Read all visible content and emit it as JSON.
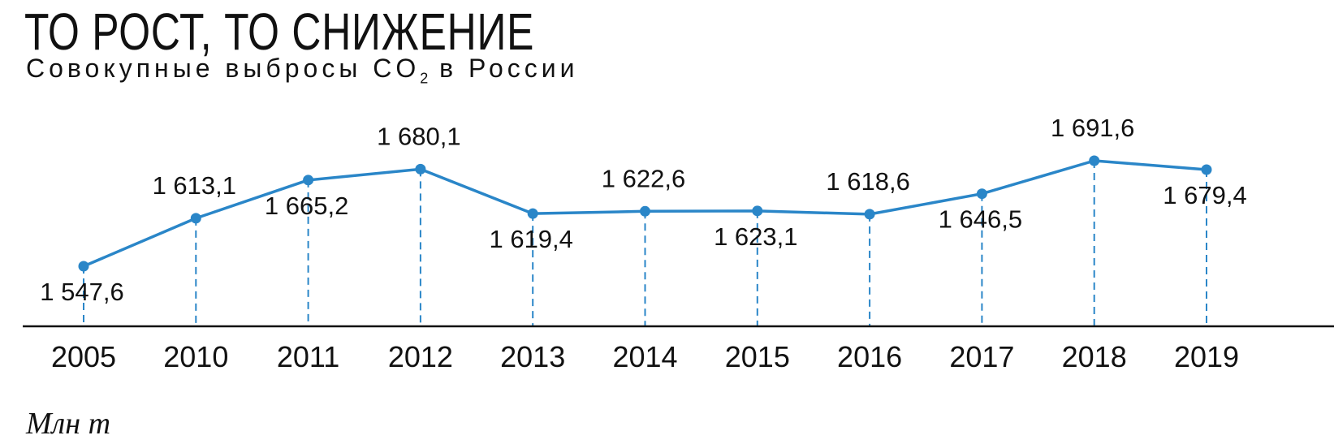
{
  "chart_data": {
    "type": "line",
    "title": "ТО РОСТ, ТО СНИЖЕНИЕ",
    "subtitle_main": "Совокупные выбросы CO",
    "subtitle_sub": "2",
    "subtitle_tail": " в России",
    "unit": "Млн т",
    "categories": [
      "2005",
      "2010",
      "2011",
      "2012",
      "2013",
      "2014",
      "2015",
      "2016",
      "2017",
      "2018",
      "2019"
    ],
    "values": [
      1547.6,
      1613.1,
      1665.2,
      1680.1,
      1619.4,
      1622.6,
      1623.1,
      1618.6,
      1646.5,
      1691.6,
      1679.4
    ],
    "data_labels": [
      "1 547,6",
      "1 613,1",
      "1 665,2",
      "1 680,1",
      "1 619,4",
      "1 622,6",
      "1 623,1",
      "1 618,6",
      "1 646,5",
      "1 691,6",
      "1 679,4"
    ],
    "label_positions": [
      "below",
      "above",
      "below",
      "above",
      "below",
      "above",
      "below",
      "above",
      "below",
      "above",
      "below"
    ],
    "line_color": "#2a86c8",
    "grid": false,
    "legend": "none"
  }
}
